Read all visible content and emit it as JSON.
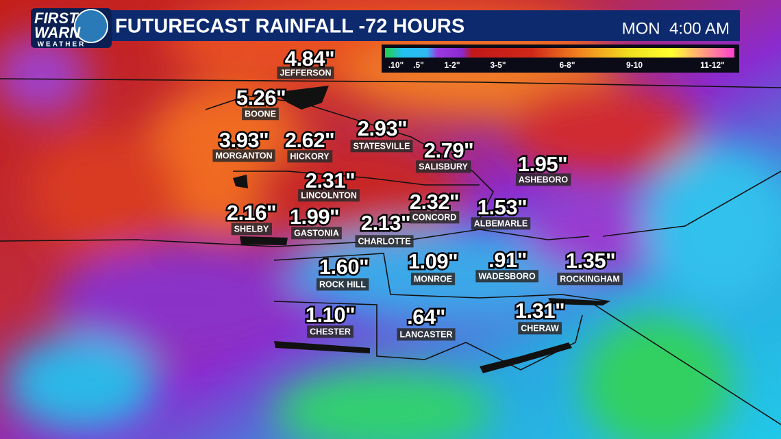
{
  "header": {
    "logo_top": "FIRST",
    "logo_middle": "WARN",
    "logo_bottom": "WEATHER",
    "title": "FUTURECAST RAINFALL -72 HOURS",
    "time": "MON  4:00 AM"
  },
  "legend": {
    "labels": [
      ".10\"",
      ".5\"",
      "1-2\"",
      "3-5\"",
      "6-8\"",
      "9-10",
      "11-12\""
    ]
  },
  "cities": [
    {
      "name": "JEFFERSON",
      "rainfall": "4.84\""
    },
    {
      "name": "BOONE",
      "rainfall": "5.26\""
    },
    {
      "name": "MORGANTON",
      "rainfall": "3.93\""
    },
    {
      "name": "HICKORY",
      "rainfall": "2.62\""
    },
    {
      "name": "STATESVILLE",
      "rainfall": "2.93\""
    },
    {
      "name": "SALISBURY",
      "rainfall": "2.79\""
    },
    {
      "name": "ASHEBORO",
      "rainfall": "1.95\""
    },
    {
      "name": "LINCOLNTON",
      "rainfall": "2.31\""
    },
    {
      "name": "SHELBY",
      "rainfall": "2.16\""
    },
    {
      "name": "GASTONIA",
      "rainfall": "1.99\""
    },
    {
      "name": "CHARLOTTE",
      "rainfall": "2.13\""
    },
    {
      "name": "CONCORD",
      "rainfall": "2.32\""
    },
    {
      "name": "ALBEMARLE",
      "rainfall": "1.53\""
    },
    {
      "name": "ROCK HILL",
      "rainfall": "1.60\""
    },
    {
      "name": "MONROE",
      "rainfall": "1.09\""
    },
    {
      "name": "WADESBORO",
      "rainfall": ".91\""
    },
    {
      "name": "ROCKINGHAM",
      "rainfall": "1.35\""
    },
    {
      "name": "CHESTER",
      "rainfall": "1.10\""
    },
    {
      "name": "LANCASTER",
      "rainfall": ".64\""
    },
    {
      "name": "CHERAW",
      "rainfall": "1.31\""
    }
  ]
}
